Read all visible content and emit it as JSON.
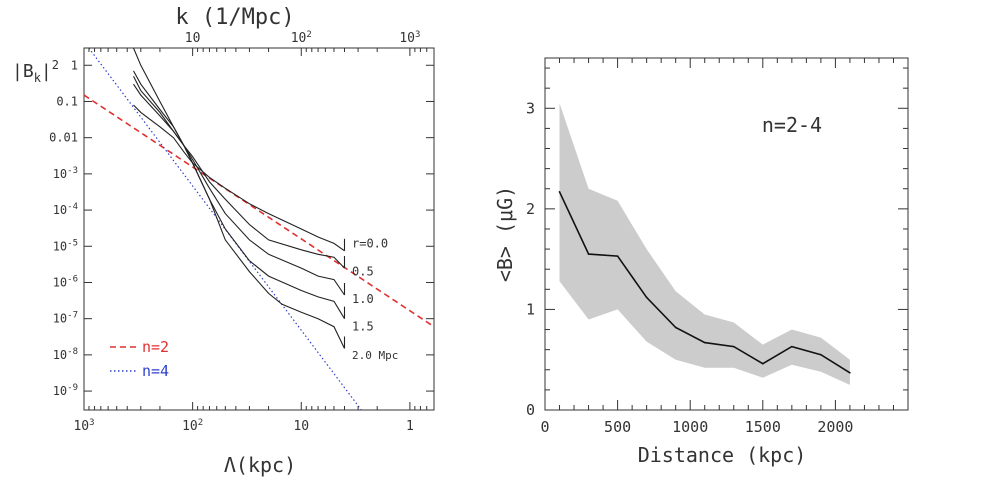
{
  "chart_data": [
    {
      "type": "line",
      "title": "",
      "xlabel": "Λ(kpc)",
      "ylabel": "|B_k|^2",
      "ylabel_main": "|B",
      "ylabel_sub": "k",
      "ylabel_tail": "|",
      "ylabel_sup": "2",
      "top_xlabel": "k (1/Mpc)",
      "xscale": "log",
      "yscale": "log",
      "xlim": [
        1000,
        0.6
      ],
      "ylim": [
        3e-10,
        3
      ],
      "x_ticks": [
        {
          "value": 1000,
          "base": "10",
          "exp": "3"
        },
        {
          "value": 100,
          "base": "10",
          "exp": "2"
        },
        {
          "value": 10,
          "base": "10",
          "exp": ""
        },
        {
          "value": 1,
          "base": "1",
          "exp": ""
        }
      ],
      "top_ticks": [
        {
          "lambda": 100,
          "base": "10",
          "exp": ""
        },
        {
          "lambda": 10,
          "base": "10",
          "exp": "2"
        },
        {
          "lambda": 1,
          "base": "10",
          "exp": "3"
        }
      ],
      "y_ticks": [
        {
          "value": 1,
          "base": "1",
          "exp": ""
        },
        {
          "value": 0.1,
          "base": "0.1",
          "exp": ""
        },
        {
          "value": 0.01,
          "base": "0.01",
          "exp": ""
        },
        {
          "value": 0.001,
          "base": "10",
          "exp": "-3"
        },
        {
          "value": 0.0001,
          "base": "10",
          "exp": "-4"
        },
        {
          "value": 1e-05,
          "base": "10",
          "exp": "-5"
        },
        {
          "value": 1e-06,
          "base": "10",
          "exp": "-6"
        },
        {
          "value": 1e-07,
          "base": "10",
          "exp": "-7"
        },
        {
          "value": 1e-08,
          "base": "10",
          "exp": "-8"
        },
        {
          "value": 1e-09,
          "base": "10",
          "exp": "-9"
        }
      ],
      "reference_lines": [
        {
          "name": "n=2",
          "color": "#e03030",
          "dash": "dashed",
          "points": [
            [
              1000,
              0.15
            ],
            [
              0.6,
              6e-08
            ]
          ]
        },
        {
          "name": "n=4",
          "color": "#3040d0",
          "dash": "dotted",
          "points": [
            [
              1000,
              4.5
            ],
            [
              2.8,
              3e-10
            ]
          ]
        }
      ],
      "series": [
        {
          "name": "r=0.0",
          "label": "r=0.0",
          "label_value": 1.2e-05,
          "x": [
            350,
            300,
            200,
            150,
            120,
            100,
            70,
            50,
            30,
            20,
            10,
            7,
            5,
            4
          ],
          "y": [
            0.08,
            0.05,
            0.02,
            0.01,
            0.004,
            0.002,
            0.0008,
            0.0004,
            0.00015,
            8e-05,
            3e-05,
            1.8e-05,
            1.2e-05,
            7.5e-06
          ]
        },
        {
          "name": "r=0.5",
          "label": "0.5",
          "label_value": 2e-06,
          "x": [
            350,
            300,
            200,
            150,
            120,
            100,
            70,
            50,
            30,
            20,
            10,
            7,
            5,
            4
          ],
          "y": [
            0.3,
            0.15,
            0.04,
            0.015,
            0.006,
            0.003,
            0.0006,
            0.0002,
            4e-05,
            1.5e-05,
            8e-06,
            6e-06,
            5e-06,
            2.5e-06
          ]
        },
        {
          "name": "r=1.0",
          "label": "1.0",
          "label_value": 3.5e-07,
          "x": [
            350,
            300,
            200,
            150,
            120,
            100,
            70,
            50,
            30,
            20,
            10,
            7,
            5,
            4
          ],
          "y": [
            0.5,
            0.2,
            0.05,
            0.015,
            0.006,
            0.0025,
            0.0004,
            8e-05,
            1.5e-05,
            6e-06,
            2.5e-06,
            1.5e-06,
            1.2e-06,
            4.5e-07
          ]
        },
        {
          "name": "r=1.5",
          "label": "1.5",
          "label_value": 6e-08,
          "x": [
            350,
            300,
            200,
            150,
            120,
            100,
            70,
            50,
            30,
            20,
            10,
            7,
            5,
            4
          ],
          "y": [
            0.7,
            0.3,
            0.06,
            0.02,
            0.006,
            0.002,
            0.0002,
            3e-05,
            4e-06,
            1.5e-06,
            6e-07,
            4e-07,
            3e-07,
            1e-07
          ]
        },
        {
          "name": "r=2.0",
          "label": "2.0 Mpc",
          "label_value": 1e-08,
          "x": [
            350,
            300,
            200,
            150,
            120,
            100,
            70,
            50,
            30,
            20,
            15,
            10,
            7,
            5,
            4
          ],
          "y": [
            3,
            1,
            0.1,
            0.02,
            0.006,
            0.002,
            0.0002,
            1.5e-05,
            2e-06,
            5e-07,
            2.5e-07,
            1.5e-07,
            1e-07,
            6e-08,
            1.5e-08
          ]
        }
      ],
      "legend": [
        {
          "name": "n=2",
          "color": "#e03030",
          "dash": "dashed"
        },
        {
          "name": "n=4",
          "color": "#3040d0",
          "dash": "dotted"
        }
      ]
    },
    {
      "type": "area",
      "title": "",
      "xlabel": "Distance (kpc)",
      "ylabel": "<B> (μG)",
      "xlim": [
        0,
        2500
      ],
      "ylim": [
        0,
        3.5
      ],
      "x_ticks": [
        0,
        500,
        1000,
        1500,
        2000
      ],
      "y_ticks": [
        0,
        1,
        2,
        3
      ],
      "annotation": "n=2-4",
      "x": [
        100,
        300,
        500,
        700,
        900,
        1100,
        1300,
        1500,
        1700,
        1900,
        2100
      ],
      "mean": [
        2.17,
        1.55,
        1.53,
        1.12,
        0.82,
        0.67,
        0.63,
        0.46,
        0.63,
        0.55,
        0.37
      ],
      "lower": [
        1.28,
        0.9,
        1.0,
        0.68,
        0.5,
        0.42,
        0.42,
        0.32,
        0.45,
        0.38,
        0.25
      ],
      "upper": [
        3.05,
        2.2,
        2.08,
        1.6,
        1.18,
        0.95,
        0.87,
        0.65,
        0.8,
        0.72,
        0.5
      ],
      "band_color": "#cccccc",
      "line_color": "#111111"
    }
  ]
}
